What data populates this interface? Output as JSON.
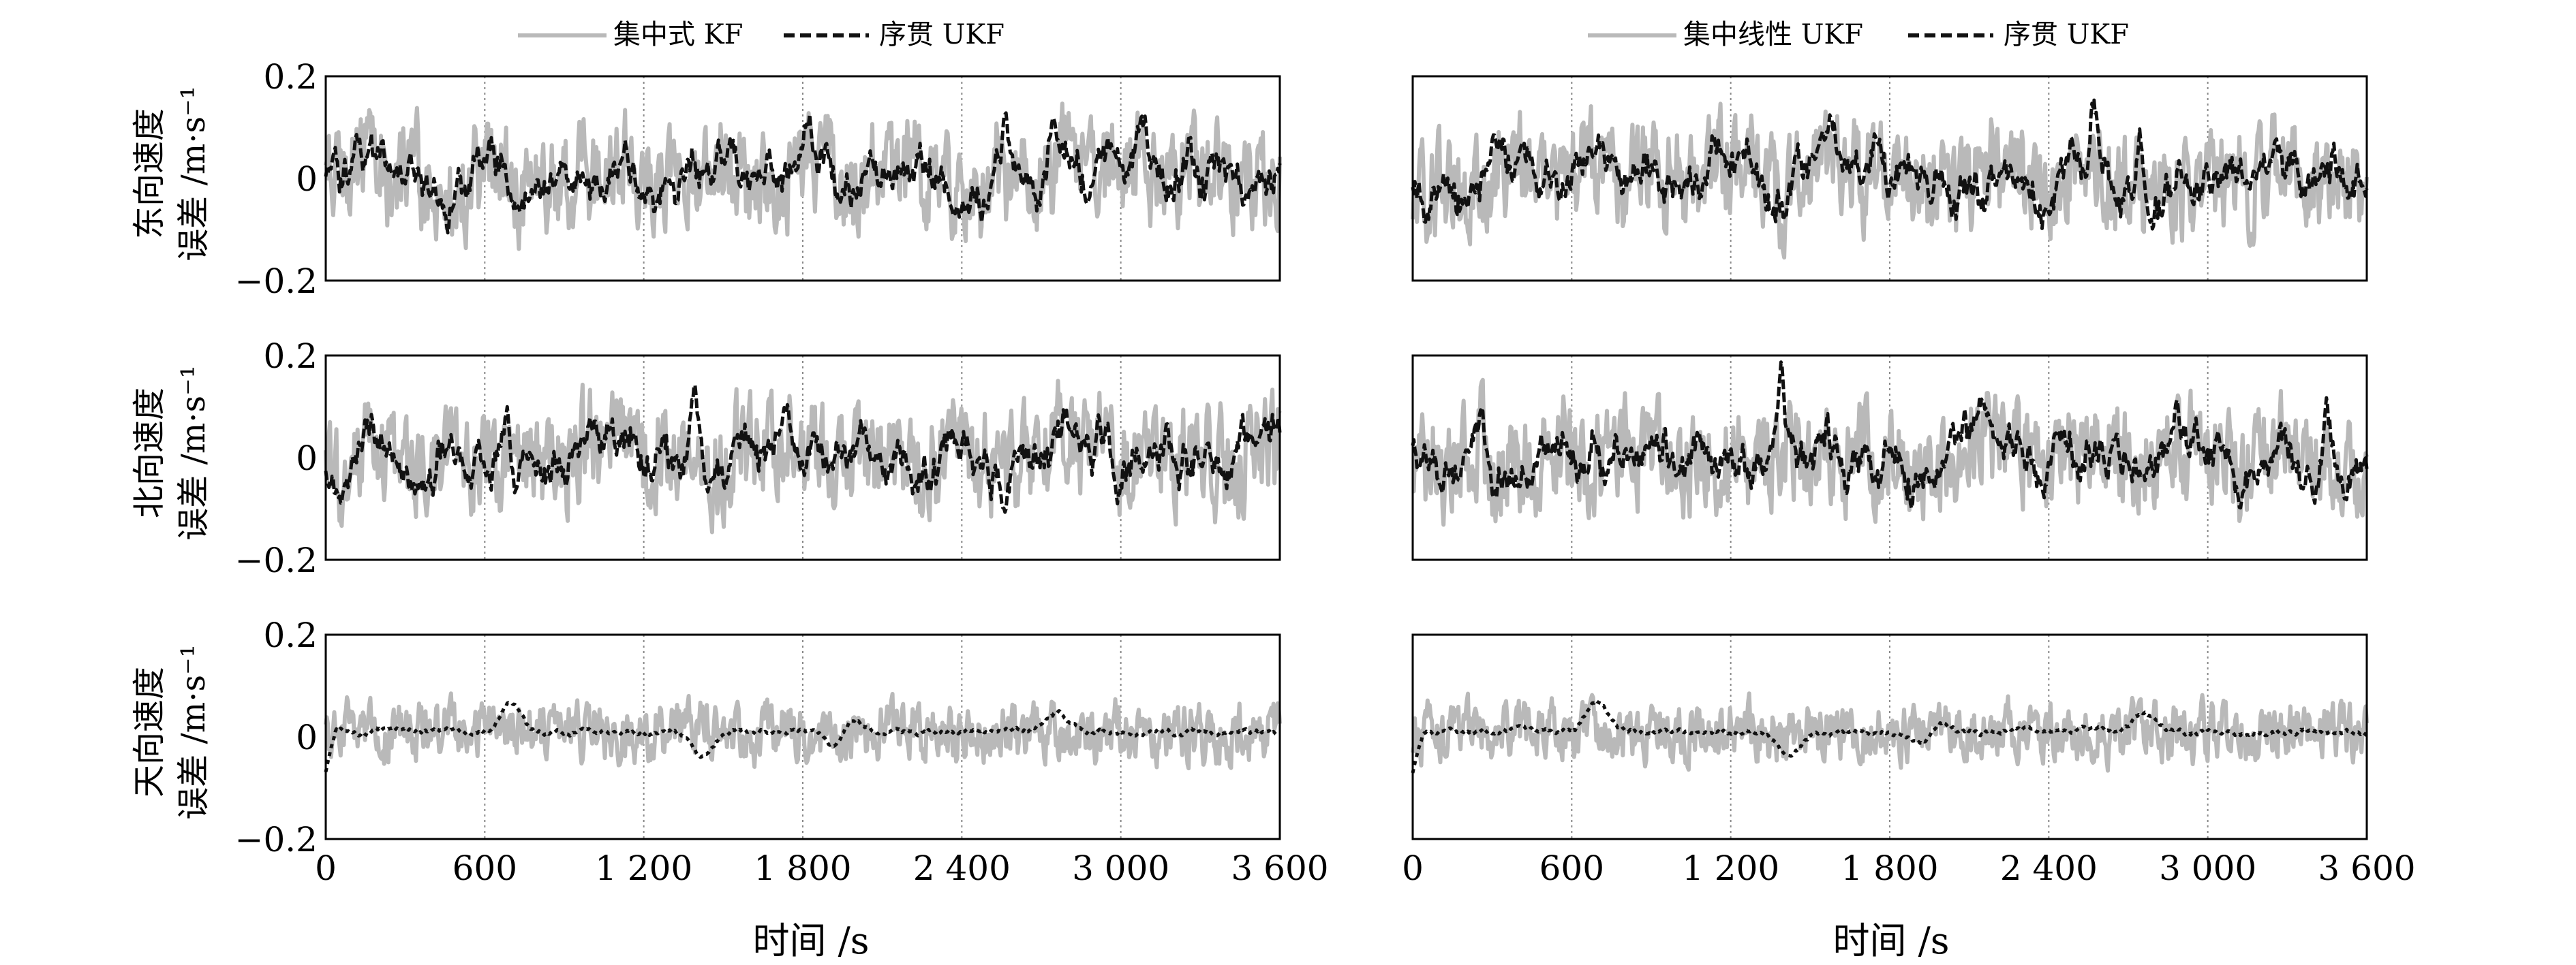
{
  "chart_data": [
    {
      "type": "line",
      "column": "left",
      "legend": [
        {
          "name": "集中式 KF",
          "color": "#b9b9b9",
          "style": "solid"
        },
        {
          "name": "序贯 UKF",
          "color": "#111111",
          "style": "dashed"
        }
      ],
      "xlabel": "时间 /s",
      "xlim": [
        0,
        3600
      ],
      "xticks": [
        "0",
        "600",
        "1 200",
        "1 800",
        "2 400",
        "3 000",
        "3 600"
      ],
      "grid": "vertical-dotted",
      "panels": [
        {
          "ylabel_line1": "东向速度",
          "ylabel_line2": "误差 /m·s⁻¹",
          "ylim": [
            -0.2,
            0.2
          ],
          "yticks": [
            "0.2",
            "0",
            "−0.2"
          ]
        },
        {
          "ylabel_line1": "北向速度",
          "ylabel_line2": "误差 /m·s⁻¹",
          "ylim": [
            -0.2,
            0.2
          ],
          "yticks": [
            "0.2",
            "0",
            "−0.2"
          ]
        },
        {
          "ylabel_line1": "天向速度",
          "ylabel_line2": "误差 /m·s⁻¹",
          "ylim": [
            -0.2,
            0.2
          ],
          "yticks": [
            "0.2",
            "0",
            "−0.2"
          ]
        }
      ]
    },
    {
      "type": "line",
      "column": "right",
      "legend": [
        {
          "name": "集中线性 UKF",
          "color": "#b9b9b9",
          "style": "solid"
        },
        {
          "name": "序贯 UKF",
          "color": "#111111",
          "style": "dashed"
        }
      ],
      "xlabel": "时间 /s",
      "xlim": [
        0,
        3600
      ],
      "xticks": [
        "0",
        "600",
        "1 200",
        "1 800",
        "2 400",
        "3 000",
        "3 600"
      ],
      "grid": "vertical-dotted",
      "panels": [
        {
          "ylim": [
            -0.2,
            0.2
          ]
        },
        {
          "ylim": [
            -0.2,
            0.2
          ]
        },
        {
          "ylim": [
            -0.2,
            0.2
          ]
        }
      ]
    }
  ],
  "series_hints": {
    "east_peaks": [
      [
        120,
        0.1
      ],
      [
        2570,
        0.19
      ],
      [
        2740,
        0.16
      ]
    ],
    "north_peaks": [
      [
        680,
        0.14
      ],
      [
        1390,
        0.19
      ],
      [
        3450,
        0.15
      ]
    ],
    "up_events": [
      [
        700,
        0.06
      ],
      [
        1420,
        -0.05
      ],
      [
        1970,
        0.05
      ],
      [
        1940,
        -0.05
      ],
      [
        2760,
        0.04
      ]
    ]
  }
}
